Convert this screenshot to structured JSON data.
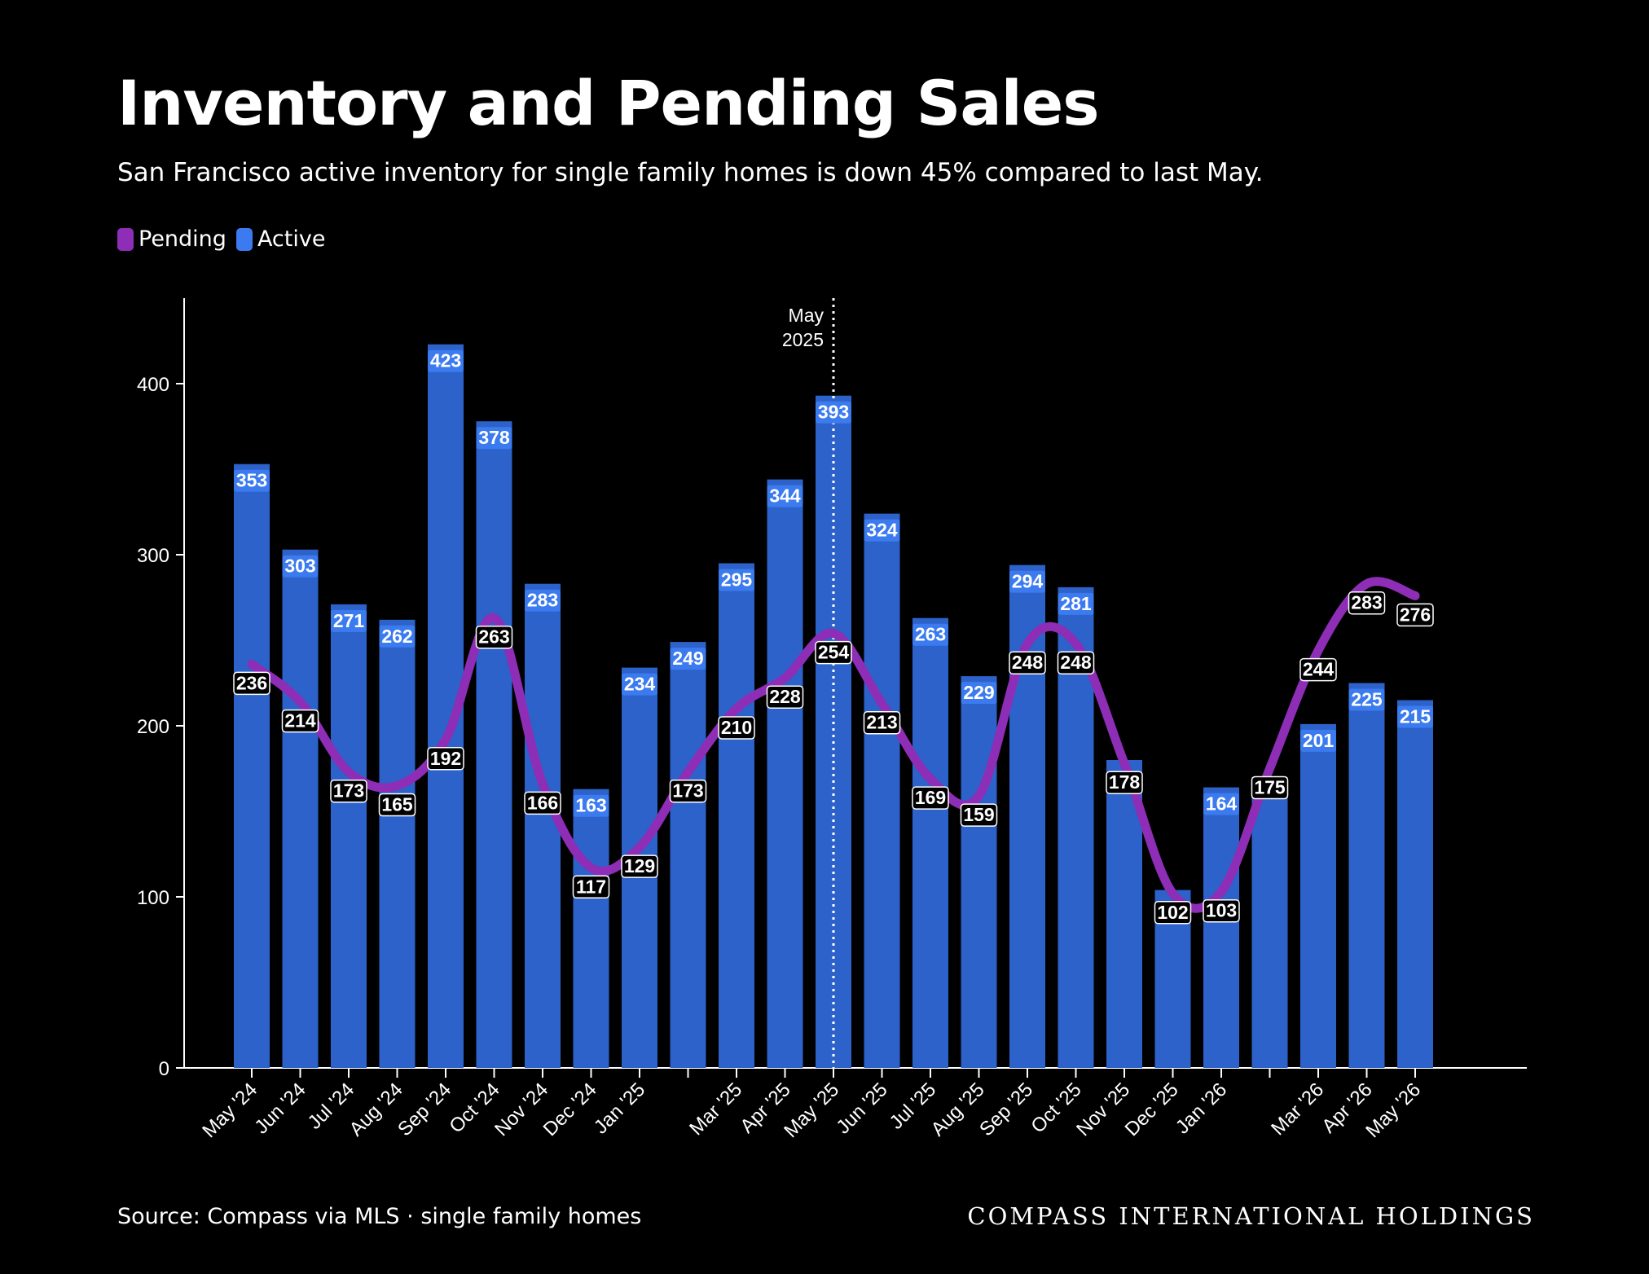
{
  "title": "Inventory and Pending Sales",
  "subtitle": "San Francisco active inventory for single family homes is down 45% compared to last May.",
  "legend": [
    {
      "label": "Pending",
      "color": "#8e2db5"
    },
    {
      "label": "Active",
      "color": "#3b7bef"
    }
  ],
  "source": "Source: Compass via MLS · single family homes",
  "brand": "COMPASS INTERNATIONAL HOLDINGS",
  "chart_data": {
    "type": "bar",
    "categories": [
      "May '24",
      "Jun '24",
      "Jul '24",
      "Aug '24",
      "Sep '24",
      "Oct '24",
      "Nov '24",
      "Dec '24",
      "Jan '25",
      "",
      "Mar '25",
      "Apr '25",
      "May '25",
      "Jun '25",
      "Jul '25",
      "Aug '25",
      "Sep '25",
      "Oct '25",
      "Nov '25",
      "Dec '25",
      "Jan '26",
      "",
      "Mar '26",
      "Apr '26",
      "May '26"
    ],
    "series": [
      {
        "name": "Active",
        "type": "bar",
        "color": "#2c62c9",
        "values": [
          353,
          303,
          271,
          262,
          423,
          378,
          283,
          163,
          234,
          249,
          295,
          344,
          393,
          324,
          263,
          229,
          294,
          281,
          180,
          104,
          164,
          170,
          201,
          225,
          215
        ],
        "labels": [
          "353",
          "303",
          "271",
          "262",
          "423",
          "378",
          "283",
          "163",
          "234",
          "249",
          "295",
          "344",
          "393",
          "324",
          "263",
          "229",
          "294",
          "281",
          "",
          "",
          "164",
          "",
          "201",
          "225",
          "215"
        ]
      },
      {
        "name": "Pending",
        "type": "line",
        "color": "#8e2db5",
        "values": [
          236,
          214,
          173,
          165,
          192,
          263,
          166,
          117,
          129,
          173,
          210,
          228,
          254,
          213,
          169,
          159,
          248,
          248,
          178,
          102,
          103,
          175,
          244,
          283,
          276
        ],
        "labels": [
          "236",
          "214",
          "173",
          "165",
          "192",
          "263",
          "166",
          "117",
          "129",
          "173",
          "210",
          "228",
          "254",
          "213",
          "169",
          "159",
          "248",
          "248",
          "178",
          "102",
          "103",
          "175",
          "244",
          "283",
          "276"
        ]
      }
    ],
    "ylim": [
      0,
      450
    ],
    "yticks": [
      0,
      100,
      200,
      300,
      400
    ],
    "annotation": {
      "category_index": 12,
      "label_lines": [
        "May",
        "2025"
      ]
    },
    "xlabel": "",
    "ylabel": "",
    "grid": false
  }
}
